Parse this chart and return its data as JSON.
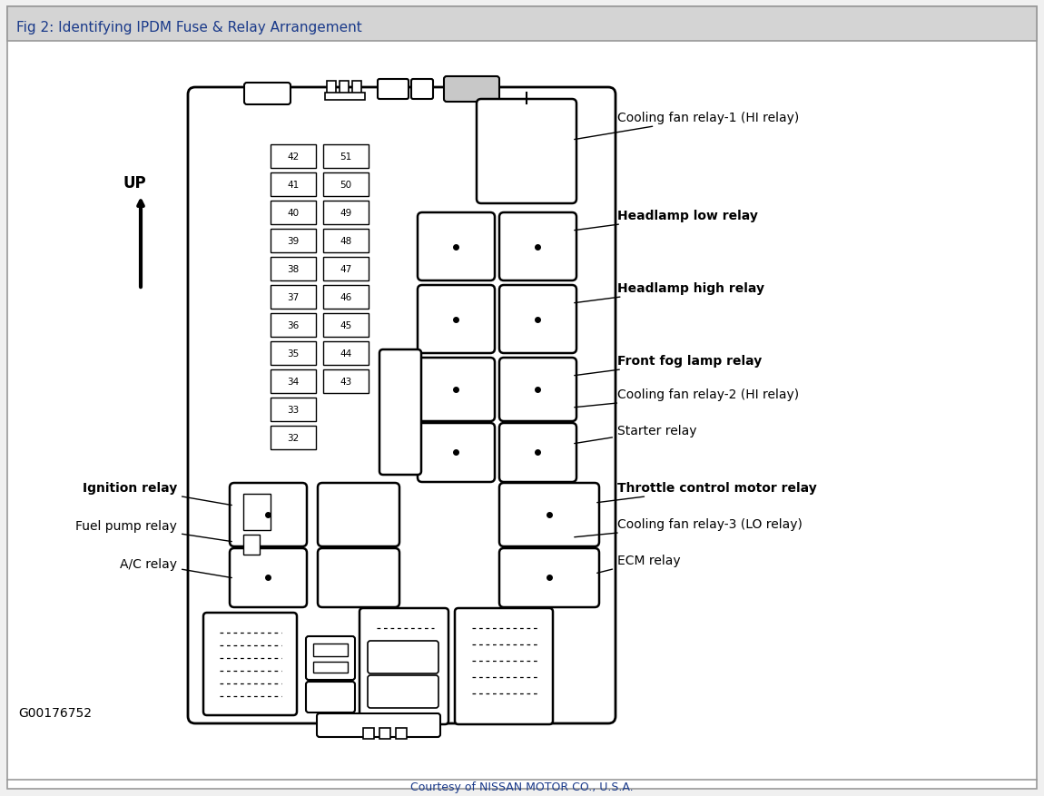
{
  "title": "Fig 2: Identifying IPDM Fuse & Relay Arrangement",
  "footer": "Courtesy of NISSAN MOTOR CO., U.S.A.",
  "watermark": "G00176752",
  "bg_color": "#f0f0f0",
  "header_color": "#d4d4d4",
  "fuse_left": [
    "42",
    "41",
    "40",
    "39",
    "38",
    "37",
    "36",
    "35",
    "34",
    "33",
    "32"
  ],
  "fuse_right": [
    "51",
    "50",
    "49",
    "48",
    "47",
    "46",
    "45",
    "44",
    "43"
  ]
}
